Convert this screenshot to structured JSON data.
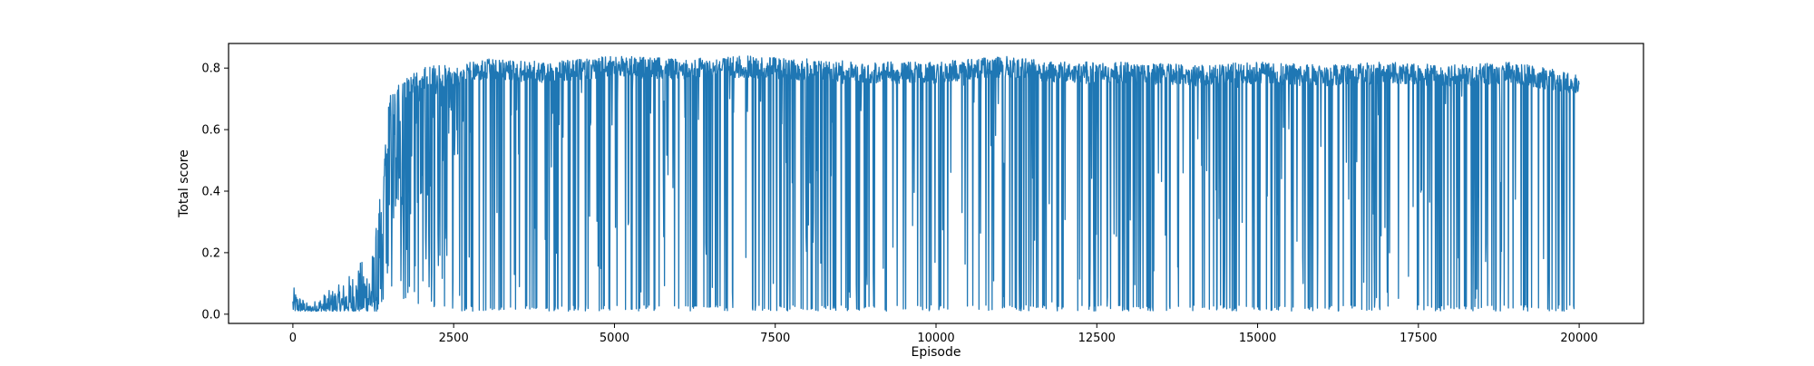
{
  "chart_data": {
    "type": "line",
    "title": "",
    "xlabel": "Episode",
    "ylabel": "Total score",
    "xlim": [
      -1000,
      21000
    ],
    "ylim": [
      -0.03,
      0.88
    ],
    "x_ticks": [
      0,
      2500,
      5000,
      7500,
      10000,
      12500,
      15000,
      17500,
      20000
    ],
    "y_ticks": [
      0.0,
      0.2,
      0.4,
      0.6,
      0.8
    ],
    "x_tick_labels": [
      "0",
      "2500",
      "5000",
      "7500",
      "10000",
      "12500",
      "15000",
      "17500",
      "20000"
    ],
    "y_tick_labels": [
      "0.0",
      "0.2",
      "0.4",
      "0.6",
      "0.8"
    ],
    "grid": false,
    "legend": "none",
    "series": [
      {
        "color": "#1f77b4",
        "episode_range": [
          0,
          20000
        ],
        "envelope": {
          "episode": [
            0,
            250,
            500,
            750,
            1000,
            1250,
            1400,
            1500,
            1750,
            2000,
            2250,
            2500,
            3000,
            4000,
            5000,
            6000,
            7000,
            8000,
            9000,
            10000,
            11000,
            12000,
            13000,
            14000,
            15000,
            16000,
            17000,
            18000,
            19000,
            20000
          ],
          "max_score": [
            0.09,
            0.03,
            0.07,
            0.1,
            0.16,
            0.22,
            0.46,
            0.71,
            0.77,
            0.8,
            0.81,
            0.81,
            0.83,
            0.82,
            0.84,
            0.83,
            0.84,
            0.83,
            0.82,
            0.82,
            0.84,
            0.82,
            0.82,
            0.81,
            0.82,
            0.81,
            0.82,
            0.81,
            0.82,
            0.78
          ],
          "min_score": [
            0.01,
            0.01,
            0.01,
            0.01,
            0.01,
            0.01,
            0.01,
            0.01,
            0.01,
            0.01,
            0.01,
            0.01,
            0.01,
            0.01,
            0.01,
            0.01,
            0.01,
            0.01,
            0.01,
            0.01,
            0.01,
            0.01,
            0.01,
            0.01,
            0.01,
            0.01,
            0.01,
            0.01,
            0.01,
            0.01
          ]
        }
      }
    ]
  }
}
